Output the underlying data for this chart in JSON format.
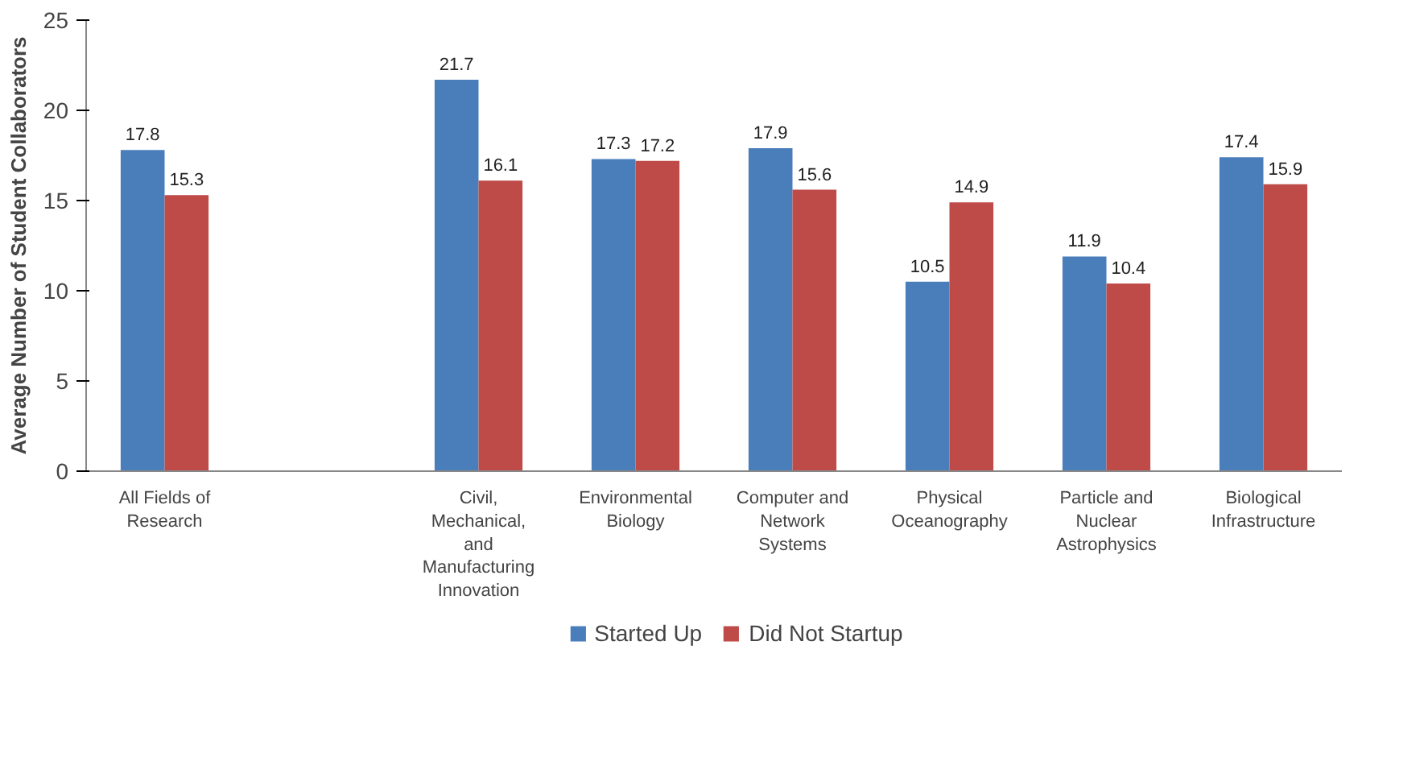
{
  "chart_data": {
    "type": "bar",
    "ylabel": "Average Number of Student Collaborators",
    "categories": [
      "All Fields of Research",
      null,
      "Civil, Mechanical, and Manufacturing Innovation",
      "Environmental Biology",
      "Computer and Network Systems",
      "Physical Oceanography",
      "Particle and Nuclear Astrophysics",
      "Biological Infrastructure"
    ],
    "series": [
      {
        "name": "Started Up",
        "color": "#4a7ebb",
        "values": [
          17.8,
          null,
          21.7,
          17.3,
          17.9,
          10.5,
          11.9,
          17.4
        ]
      },
      {
        "name": "Did Not Startup",
        "color": "#be4b48",
        "values": [
          15.3,
          null,
          16.1,
          17.2,
          15.6,
          14.9,
          10.4,
          15.9
        ]
      }
    ],
    "ylim": [
      0,
      25
    ],
    "yticks": [
      0,
      5,
      10,
      15,
      20,
      25
    ],
    "grid": false,
    "legend": "bottom",
    "data_labels": true
  }
}
